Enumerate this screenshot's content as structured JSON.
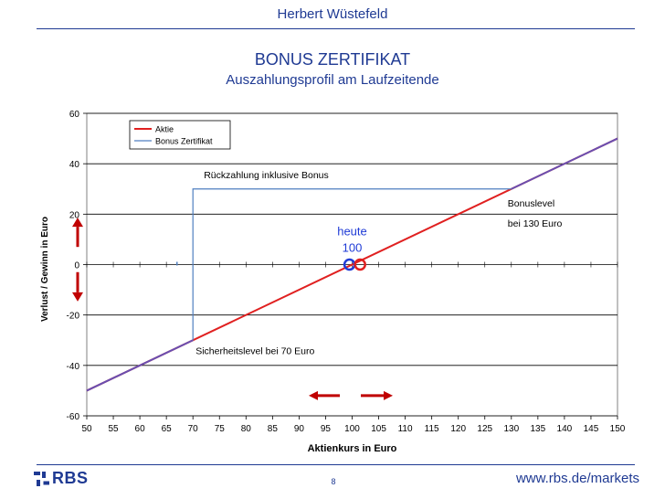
{
  "header": {
    "author": "Herbert Wüstefeld",
    "title": "BONUS ZERTIFIKAT",
    "subtitle": "Auszahlungsprofil am Laufzeitende"
  },
  "footer": {
    "logo_text": "RBS",
    "page_number": "8",
    "url": "www.rbs.de/markets"
  },
  "chart_data": {
    "type": "line",
    "xlabel": "Aktienkurs in Euro",
    "ylabel": "Verlust  /  Gewinn in Euro",
    "xlim": [
      50,
      150
    ],
    "ylim": [
      -60,
      60
    ],
    "x_ticks": [
      50,
      55,
      60,
      65,
      70,
      75,
      80,
      85,
      90,
      95,
      100,
      105,
      110,
      115,
      120,
      125,
      130,
      135,
      140,
      145,
      150
    ],
    "y_ticks": [
      60,
      40,
      20,
      0,
      -20,
      -40,
      -60
    ],
    "grid": "horizontal",
    "legend_position": "top-left",
    "series": [
      {
        "name": "Aktie",
        "color": "#e02020",
        "x": [
          50,
          150
        ],
        "y": [
          -50,
          50
        ]
      },
      {
        "name": "Bonus Zertifikat",
        "color": "#4f7fc0",
        "x": [
          50,
          70,
          70,
          130,
          150
        ],
        "y": [
          -50,
          -30,
          30,
          30,
          50
        ]
      }
    ],
    "annotations": {
      "rueckzahlung": "Rückzahlung inklusive Bonus",
      "bonuslevel_line1": "Bonuslevel",
      "bonuslevel_line2": "bei 130 Euro",
      "sicherheitslevel": "Sicherheitslevel bei 70 Euro",
      "heute_line1": "heute",
      "heute_line2": "100"
    },
    "colors": {
      "arrow": "#c00000",
      "marker_blue": "#1f3bd6",
      "marker_red": "#e02020"
    }
  }
}
